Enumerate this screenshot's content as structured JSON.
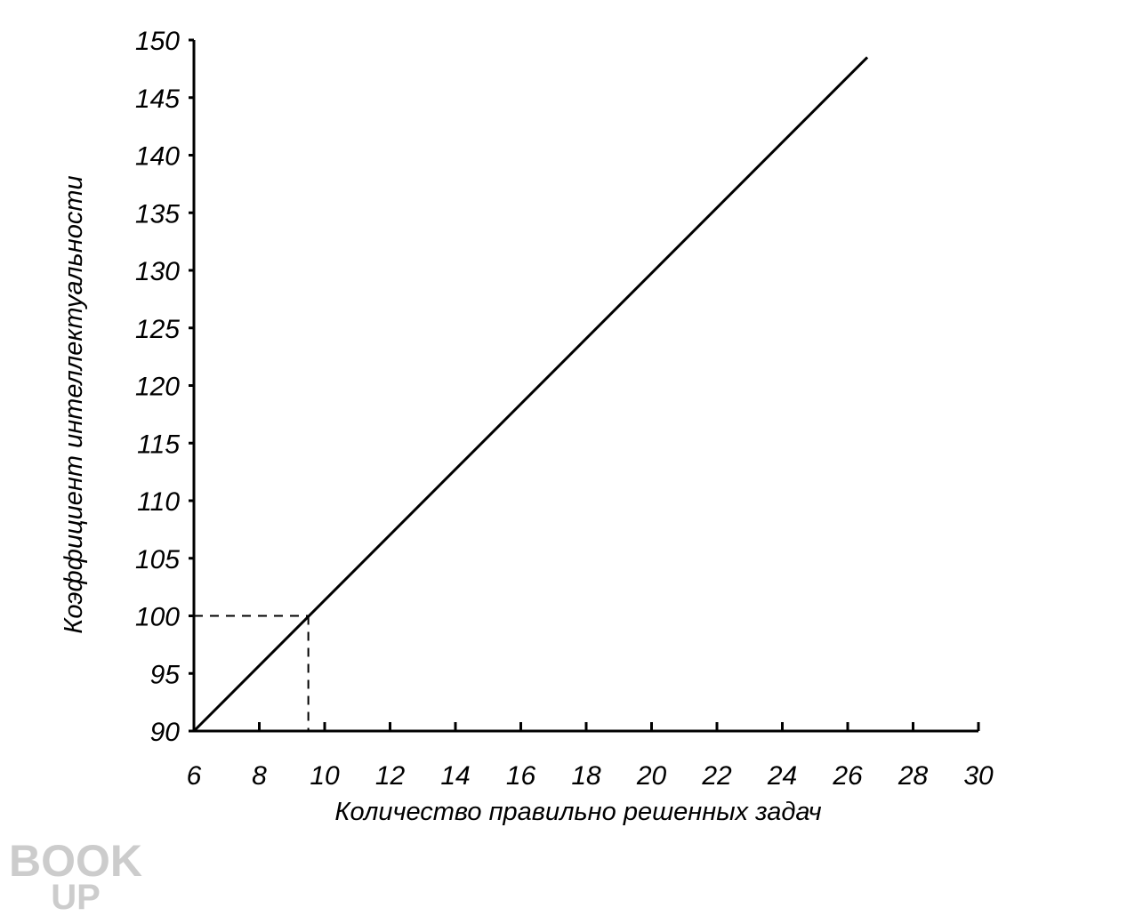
{
  "chart_data": {
    "type": "line",
    "x_label": "Количество правильно решенных задач",
    "y_label": "Коэффициент интеллектуальности",
    "x": [
      6,
      26.6
    ],
    "series": [
      {
        "color": "#000000",
        "values": [
          90,
          148.5
        ]
      }
    ],
    "reference_point": {
      "x": 9.5,
      "y": 100
    },
    "xlim": [
      6,
      30
    ],
    "xticks": [
      6,
      8,
      10,
      12,
      14,
      16,
      18,
      20,
      22,
      24,
      26,
      28,
      30
    ],
    "ylim": [
      90,
      150
    ],
    "yticks": [
      90,
      95,
      100,
      105,
      110,
      115,
      120,
      125,
      130,
      135,
      140,
      145,
      150
    ],
    "grid": false,
    "watermark": [
      "BOOK",
      "UP"
    ]
  }
}
